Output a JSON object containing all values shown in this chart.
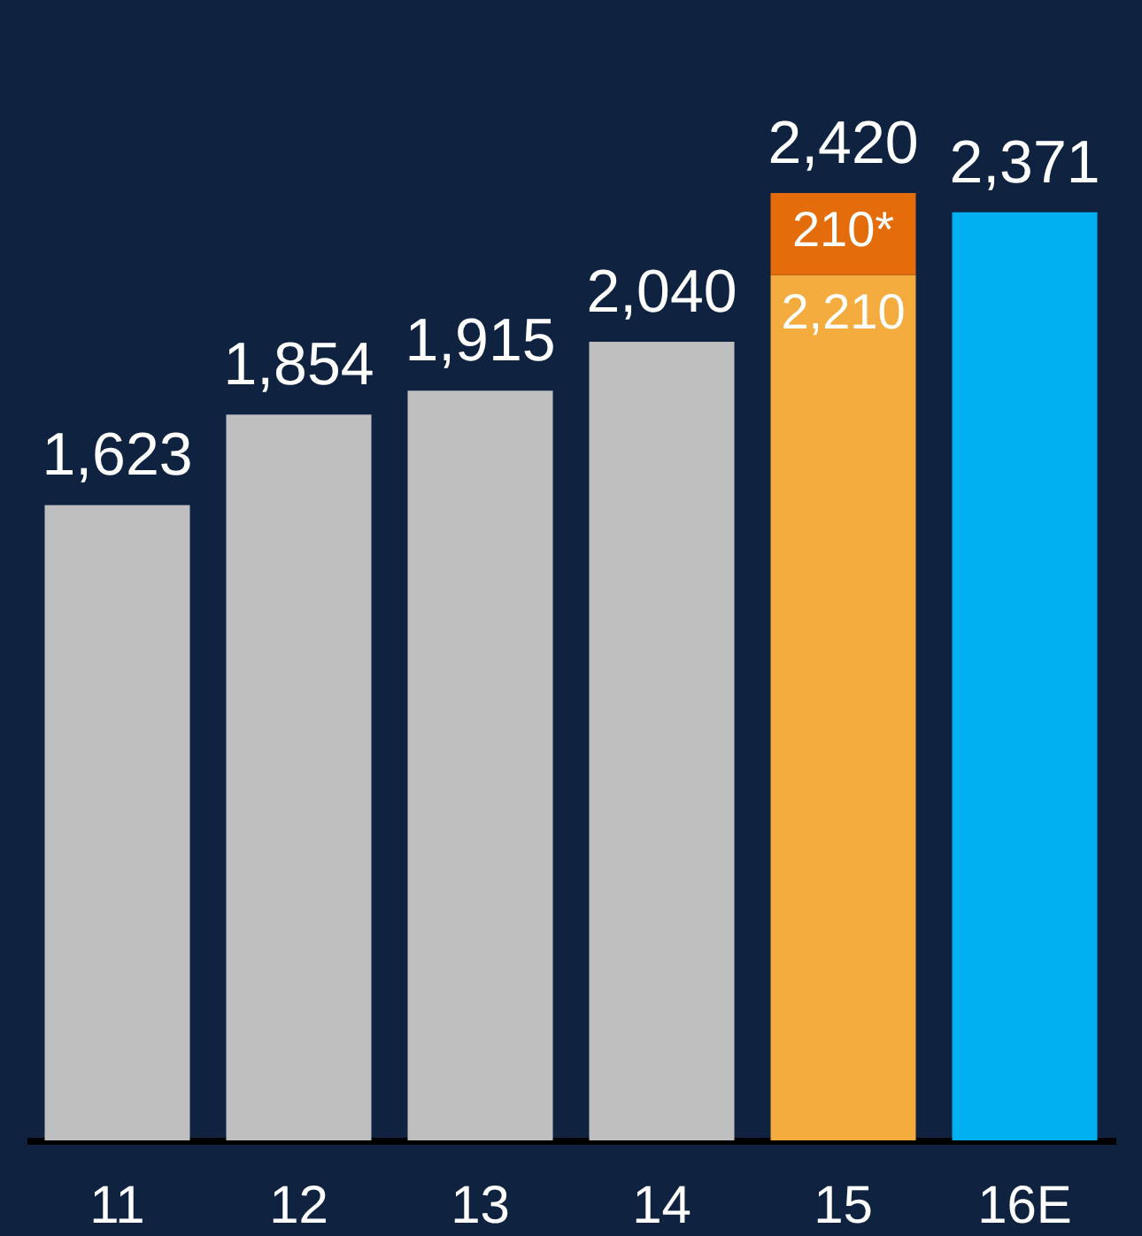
{
  "chart_data": {
    "type": "bar",
    "stacked": true,
    "categories": [
      "11",
      "12",
      "13",
      "14",
      "15",
      "16E"
    ],
    "series": [
      {
        "colors": [
          "#bfbfbf",
          "#bfbfbf",
          "#bfbfbf",
          "#bfbfbf",
          "#f4ac3f",
          "#00b0f0"
        ],
        "values": [
          1623,
          1854,
          1915,
          2040,
          2210,
          2371
        ],
        "value_labels": [
          "1,623",
          "1,854",
          "1,915",
          "2,040",
          "2,210",
          "2,371"
        ]
      },
      {
        "color": "#e46c0a",
        "values": [
          null,
          null,
          null,
          null,
          210,
          null
        ],
        "value_labels": [
          null,
          null,
          null,
          null,
          "210*",
          null
        ]
      }
    ],
    "totals": [
      null,
      null,
      null,
      null,
      "2,420",
      null
    ],
    "grid": false
  }
}
